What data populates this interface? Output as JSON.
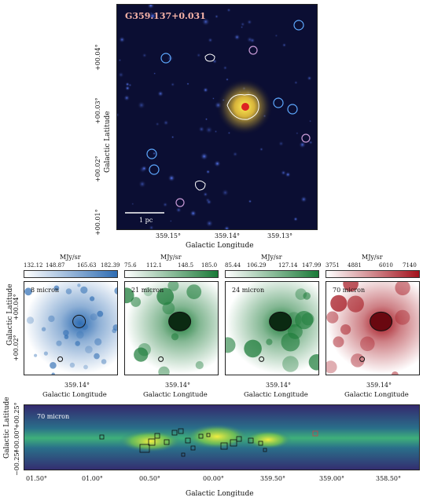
{
  "top_panel": {
    "source_name": "G359.137+0.031",
    "y_ticks": [
      "+00.04°",
      "+00.03°",
      "+00.02°",
      "+00.01°"
    ],
    "x_ticks": [
      "359.15°",
      "359.14°",
      "359.13°"
    ],
    "ylabel": "Galactic Latitude",
    "xlabel": "Galactic Longitude",
    "scalebar": "1 pc"
  },
  "mid_panels": [
    {
      "unit": "MJy/sr",
      "ticks": [
        "132.12",
        "148.87",
        "165.63",
        "182.39"
      ],
      "label": "8 micron",
      "colors": [
        "#ffffff",
        "#2f6db3"
      ],
      "xtick": "359.14°",
      "xlabel": "Galactic Longitude"
    },
    {
      "unit": "MJy/sr",
      "ticks": [
        "75.6",
        "112.1",
        "148.5",
        "185.0"
      ],
      "label": "21 micron",
      "colors": [
        "#ffffff",
        "#1a7a37"
      ],
      "xtick": "359.14°",
      "xlabel": "Galactic Longitude"
    },
    {
      "unit": "MJy/sr",
      "ticks": [
        "85.44",
        "106.29",
        "127.14",
        "147.99"
      ],
      "label": "24 micron",
      "colors": [
        "#ffffff",
        "#1a7a37"
      ],
      "xtick": "359.14°",
      "xlabel": "Galactic Longitude"
    },
    {
      "unit": "MJy/sr",
      "ticks": [
        "3751",
        "4881",
        "6010",
        "7140"
      ],
      "label": "70 micron",
      "colors": [
        "#ffffff",
        "#a3121c"
      ],
      "xtick": "359.14°",
      "xlabel": "Galactic Longitude"
    }
  ],
  "mid_ylabel": "Galactic Latitude",
  "mid_yticks": [
    "+00.04°",
    "+00.02°"
  ],
  "bottom_panel": {
    "label": "70 micron",
    "ylabel": "Galactic Latitude",
    "y_ticks": [
      "+00.25°",
      "+00.00°",
      "−00.25°"
    ],
    "x_ticks": [
      "01.50°",
      "01.00°",
      "00.50°",
      "00.00°",
      "359.50°",
      "359.00°",
      "358.50°"
    ],
    "xlabel": "Galactic Longitude"
  }
}
